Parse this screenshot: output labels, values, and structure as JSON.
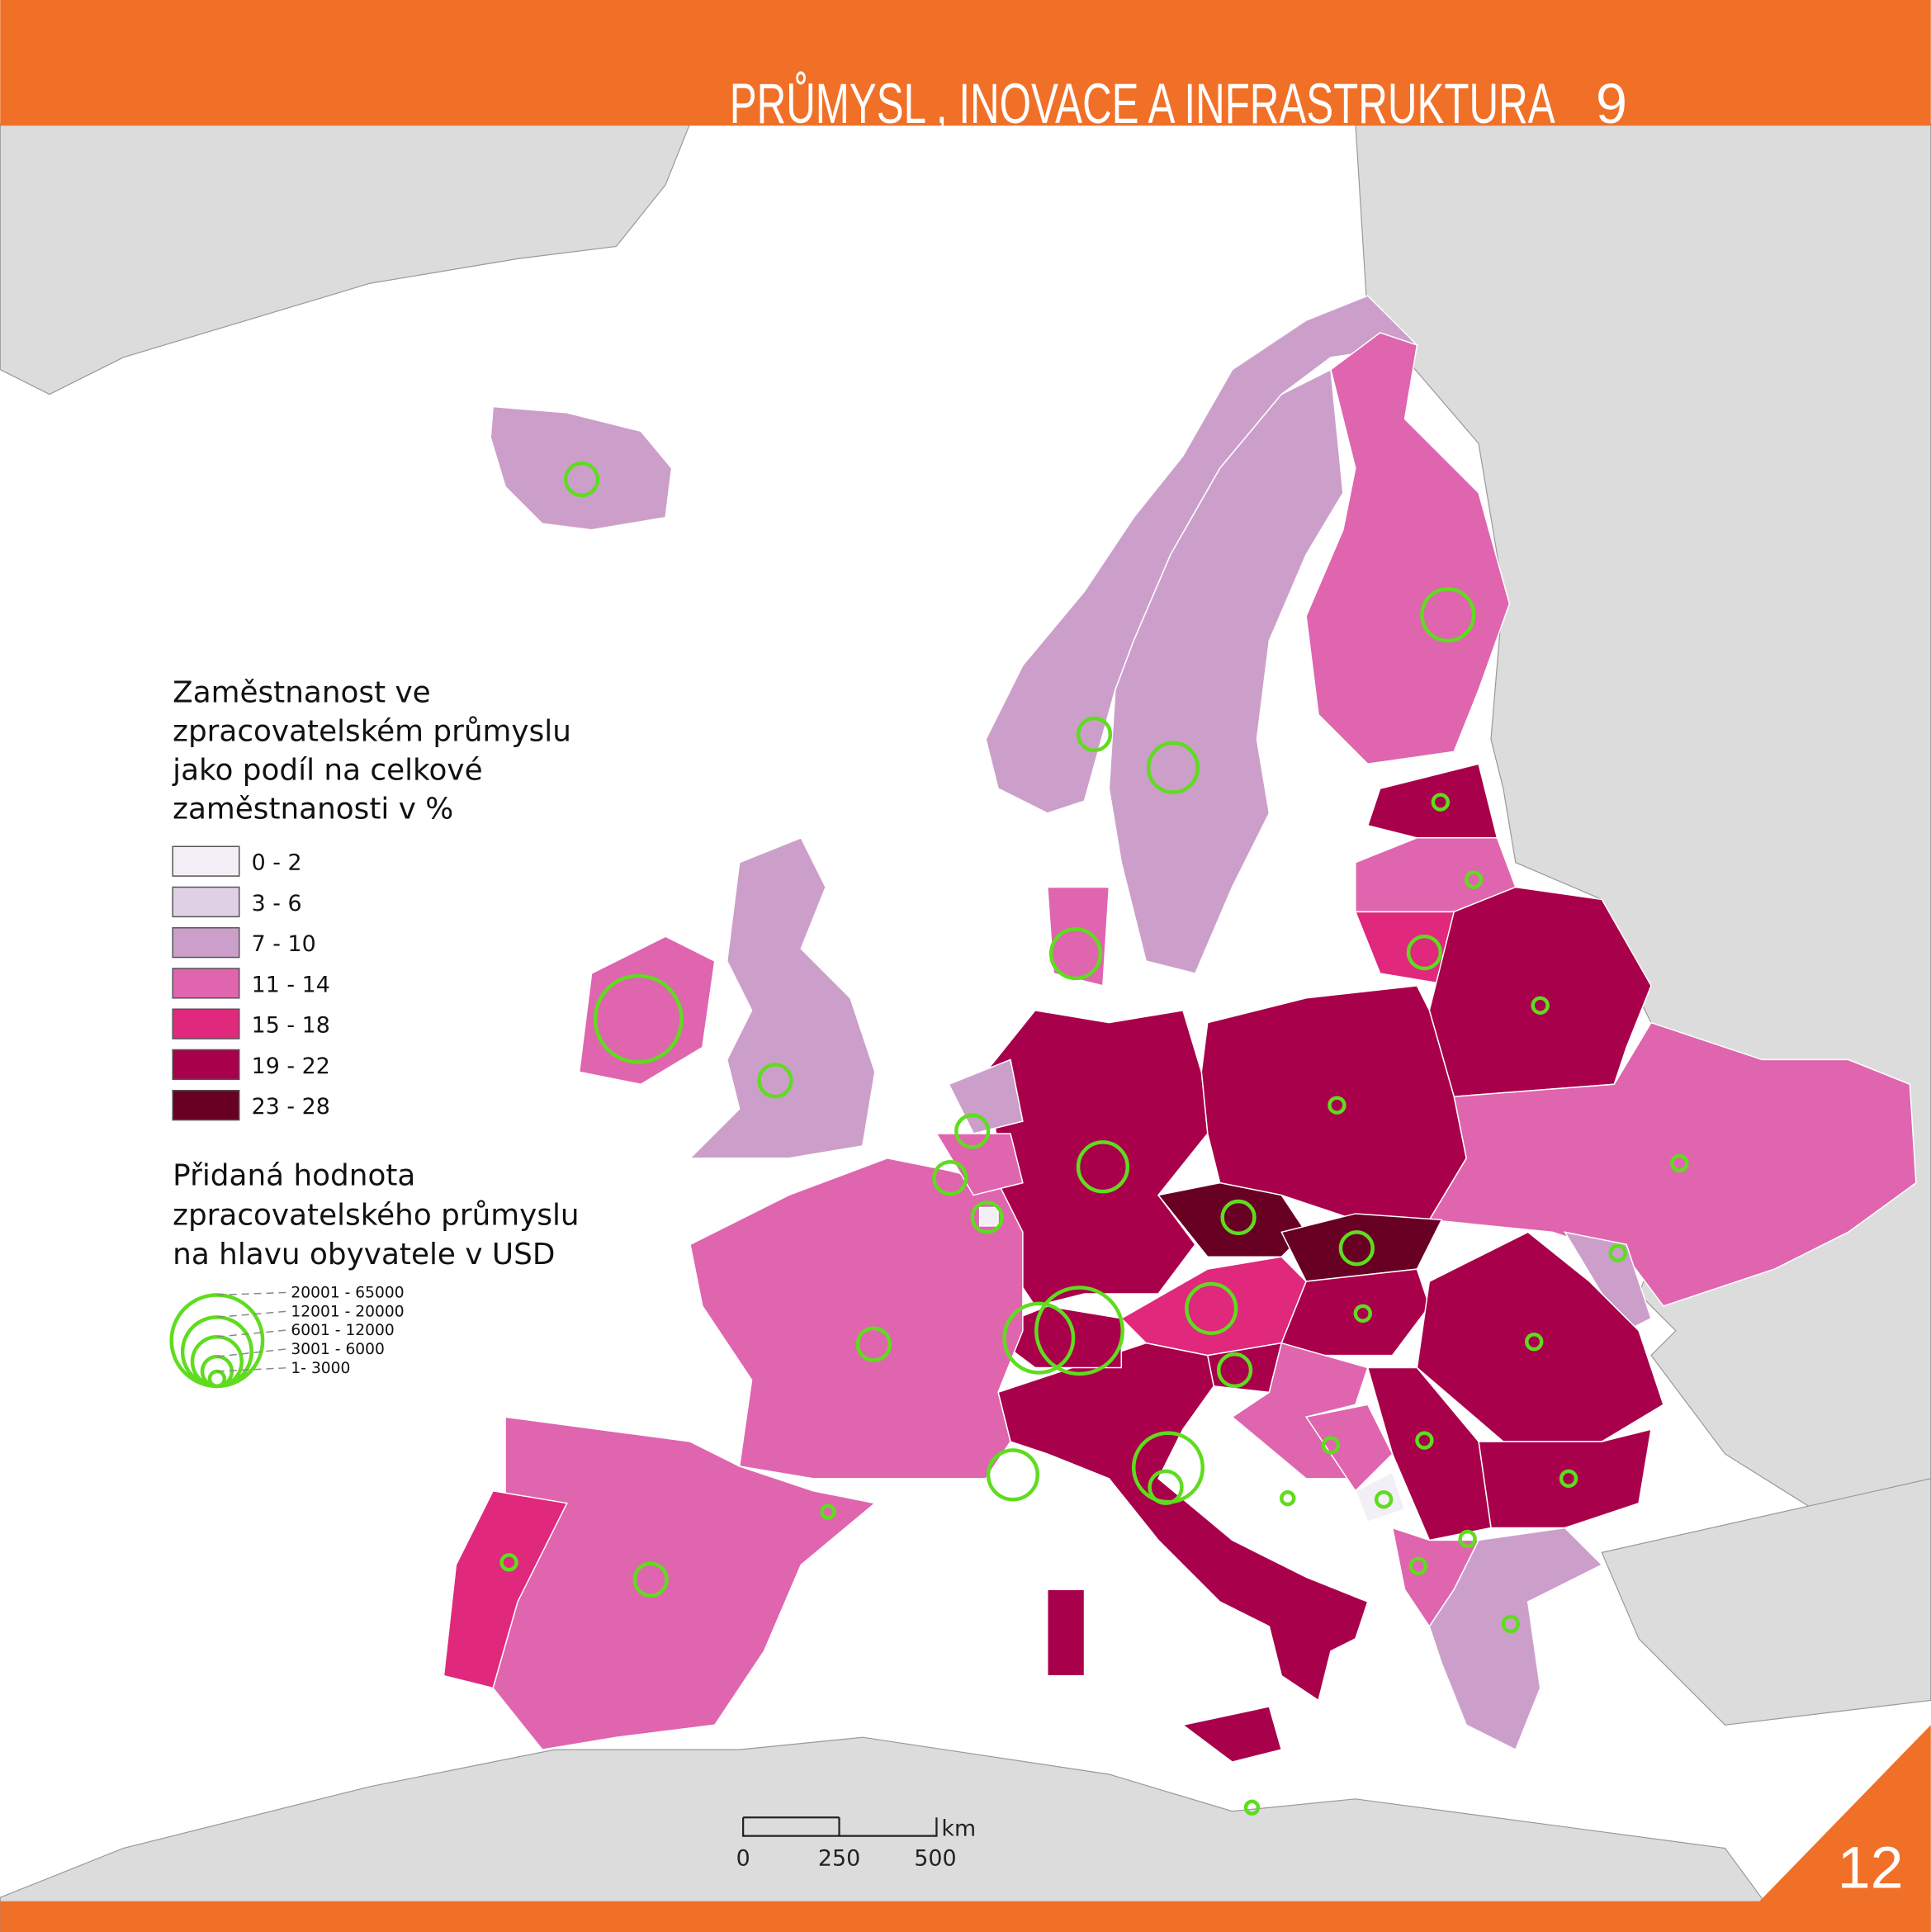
{
  "header": {
    "title": "PRŮMYSL , INOVACE A INFRASTRUKTURA",
    "goal_number": "9"
  },
  "legend": {
    "employment_title": [
      "Zaměstnanost ve",
      "zpracovatelském průmyslu",
      "jako podíl na celkové",
      "zaměstnanosti v %"
    ],
    "classes": [
      {
        "label": "0 - 2",
        "color": "#f2eff6"
      },
      {
        "label": "3 - 6",
        "color": "#dfd0e6"
      },
      {
        "label": "7 - 10",
        "color": "#cc9fcb"
      },
      {
        "label": "11 - 14",
        "color": "#df65af"
      },
      {
        "label": "15 - 18",
        "color": "#e0287c"
      },
      {
        "label": "19 - 22",
        "color": "#a8004a"
      },
      {
        "label": "23 - 28",
        "color": "#680024"
      }
    ],
    "value_added_title": [
      "Přidaná hodnota",
      "zpracovatelského průmyslu",
      "na hlavu obyvatele v USD"
    ],
    "size_classes": [
      "20001 - 65000",
      "12001 - 20000",
      "6001 - 12000",
      "3001 - 6000",
      "1- 3000"
    ],
    "circle_color": "#5fdc1f"
  },
  "scale_bar": {
    "unit": "km",
    "labels": [
      "0",
      "250",
      "500"
    ]
  },
  "page_number": "12"
}
